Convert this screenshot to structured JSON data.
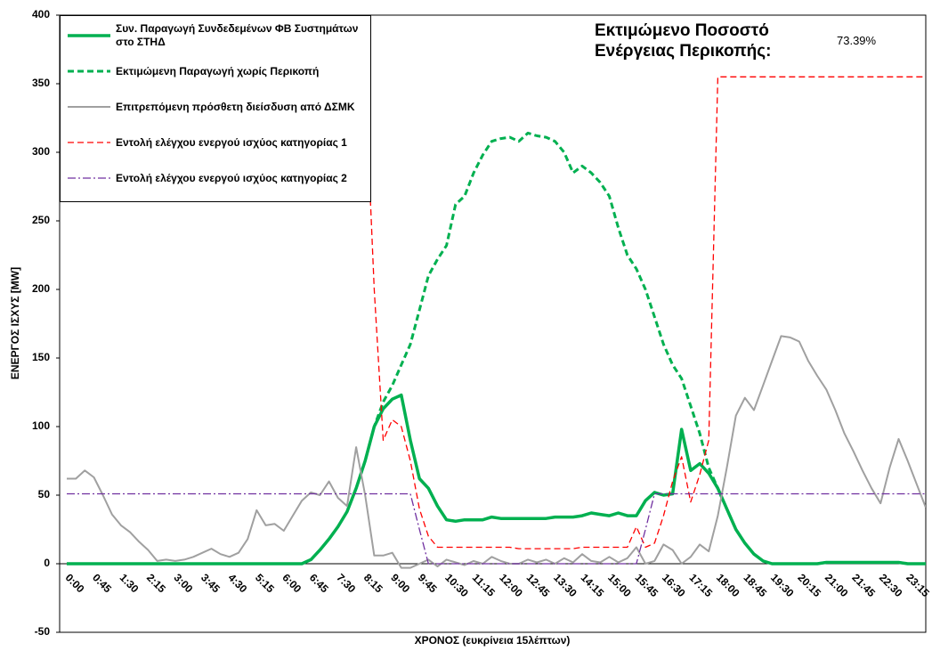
{
  "chart_data": {
    "type": "line",
    "y_label": "ΕΝΕΡΓΟΣ ΙΣΧΥΣ [MW]",
    "x_label": "ΧΡΟΝΟΣ (ευκρίνεια 15λέπτων)",
    "annotations": [
      "Εκτιμώμενο Ποσοστό Ενέργειας Περικοπής:",
      "73.39%"
    ],
    "ylim": [
      -50,
      400
    ],
    "yticks": [
      -50,
      0,
      50,
      100,
      150,
      200,
      250,
      300,
      350,
      400
    ],
    "grid": false,
    "legend": "upper left",
    "categories": [
      "0:00",
      null,
      null,
      "0:45",
      null,
      null,
      "1:30",
      null,
      null,
      "2:15",
      null,
      null,
      "3:00",
      null,
      null,
      "3:45",
      null,
      null,
      "4:30",
      null,
      null,
      "5:15",
      null,
      null,
      "6:00",
      null,
      null,
      "6:45",
      null,
      null,
      "7:30",
      null,
      null,
      "8:15",
      null,
      null,
      "9:00",
      null,
      null,
      "9:45",
      null,
      null,
      "10:30",
      null,
      null,
      "11:15",
      null,
      null,
      "12:00",
      null,
      null,
      "12:45",
      null,
      null,
      "13:30",
      null,
      null,
      "14:15",
      null,
      null,
      "15:00",
      null,
      null,
      "15:45",
      null,
      null,
      "16:30",
      null,
      null,
      "17:15",
      null,
      null,
      "18:00",
      null,
      null,
      "18:45",
      null,
      null,
      "19:30",
      null,
      null,
      "20:15",
      null,
      null,
      "21:00",
      null,
      null,
      "21:45",
      null,
      null,
      "22:30",
      null,
      null,
      "23:15",
      null,
      null
    ],
    "series": [
      {
        "name": "Συν. Παραγωγή Συνδεδεμένων ΦΒ Συστημάτων στο ΣΤΗΔ",
        "color": "#00b050",
        "dash": "solid",
        "width": 3.5,
        "values": [
          0,
          0,
          0,
          0,
          0,
          0,
          0,
          0,
          0,
          0,
          0,
          0,
          0,
          0,
          0,
          0,
          0,
          0,
          0,
          0,
          0,
          0,
          0,
          0,
          0,
          0,
          0,
          3,
          10,
          18,
          27,
          38,
          55,
          75,
          100,
          113,
          120,
          123,
          90,
          62,
          55,
          42,
          32,
          31,
          32,
          32,
          32,
          34,
          33,
          33,
          33,
          33,
          33,
          33,
          34,
          34,
          34,
          35,
          37,
          36,
          35,
          37,
          35,
          35,
          46,
          52,
          50,
          51,
          98,
          68,
          73,
          66,
          55,
          40,
          25,
          15,
          7,
          2,
          0,
          0,
          0,
          0,
          0,
          0,
          1,
          1,
          1,
          1,
          1,
          1,
          1,
          1,
          1,
          0,
          0,
          0
        ]
      },
      {
        "name": "Εκτιμώμενη Παραγωγή χωρίς Περικοπή",
        "color": "#00b050",
        "dash": "dashed",
        "width": 3,
        "values": [
          0,
          0,
          0,
          0,
          0,
          0,
          0,
          0,
          0,
          0,
          0,
          0,
          0,
          0,
          0,
          0,
          0,
          0,
          0,
          0,
          0,
          0,
          0,
          0,
          0,
          0,
          0,
          3,
          10,
          18,
          27,
          38,
          55,
          75,
          100,
          118,
          130,
          145,
          160,
          185,
          210,
          222,
          232,
          262,
          268,
          285,
          298,
          308,
          310,
          311,
          308,
          314,
          312,
          311,
          308,
          300,
          285,
          290,
          285,
          278,
          268,
          245,
          225,
          215,
          200,
          180,
          160,
          145,
          135,
          115,
          95,
          70,
          55,
          40,
          25,
          15,
          7,
          2,
          0,
          0,
          0,
          0,
          0,
          0,
          1,
          1,
          1,
          1,
          1,
          1,
          1,
          1,
          1,
          0,
          0,
          0
        ]
      },
      {
        "name": "Επιτρεπόμενη πρόσθετη διείσδυση από ΔΣΜΚ",
        "color": "#a0a0a0",
        "dash": "solid",
        "width": 2,
        "values": [
          62,
          62,
          68,
          63,
          50,
          36,
          28,
          23,
          16,
          10,
          2,
          3,
          2,
          3,
          5,
          8,
          11,
          7,
          5,
          8,
          18,
          39,
          28,
          29,
          24,
          35,
          46,
          52,
          50,
          60,
          48,
          42,
          85,
          50,
          6,
          6,
          8,
          -3,
          -3,
          0,
          3,
          -2,
          3,
          1,
          -1,
          2,
          0,
          5,
          2,
          0,
          0,
          3,
          1,
          3,
          0,
          4,
          1,
          7,
          2,
          1,
          5,
          1,
          4,
          12,
          0,
          2,
          14,
          10,
          0,
          5,
          14,
          9,
          35,
          70,
          108,
          121,
          112,
          130,
          148,
          166,
          165,
          162,
          148,
          137,
          127,
          112,
          95,
          82,
          68,
          55,
          44,
          70,
          91,
          75,
          58,
          41
        ]
      },
      {
        "name": "Εντολή ελέγχου ενεργού ισχύος κατηγορίας 1",
        "color": "#ff0000",
        "dash": "dashed",
        "width": 1.3,
        "values": [
          355,
          355,
          355,
          355,
          355,
          355,
          355,
          355,
          355,
          355,
          355,
          355,
          355,
          355,
          355,
          355,
          355,
          355,
          355,
          355,
          355,
          355,
          355,
          355,
          355,
          355,
          355,
          355,
          355,
          355,
          355,
          355,
          355,
          355,
          200,
          90,
          105,
          100,
          75,
          40,
          20,
          12,
          12,
          12,
          12,
          12,
          12,
          12,
          12,
          12,
          11,
          11,
          11,
          11,
          11,
          11,
          11,
          12,
          12,
          12,
          12,
          12,
          12,
          27,
          12,
          15,
          35,
          60,
          78,
          45,
          65,
          90,
          355,
          355,
          355,
          355,
          355,
          355,
          355,
          355,
          355,
          355,
          355,
          355,
          355,
          355,
          355,
          355,
          355,
          355,
          355,
          355,
          355,
          355,
          355,
          355
        ]
      },
      {
        "name": "Εντολή ελέγχου ενεργού ισχύος κατηγορίας 2",
        "color": "#7030a0",
        "dash": "dashdot",
        "width": 1.3,
        "values": [
          51,
          51,
          51,
          51,
          51,
          51,
          51,
          51,
          51,
          51,
          51,
          51,
          51,
          51,
          51,
          51,
          51,
          51,
          51,
          51,
          51,
          51,
          51,
          51,
          51,
          51,
          51,
          51,
          51,
          51,
          51,
          51,
          51,
          51,
          51,
          51,
          51,
          51,
          51,
          25,
          0,
          0,
          0,
          0,
          0,
          0,
          0,
          0,
          0,
          0,
          0,
          0,
          0,
          0,
          0,
          0,
          0,
          0,
          0,
          0,
          0,
          0,
          0,
          0,
          25,
          51,
          51,
          51,
          51,
          51,
          51,
          51,
          51,
          51,
          51,
          51,
          51,
          51,
          51,
          51,
          51,
          51,
          51,
          51,
          51,
          51,
          51,
          51,
          51,
          51,
          51,
          51,
          51,
          51,
          51,
          51
        ]
      }
    ]
  }
}
